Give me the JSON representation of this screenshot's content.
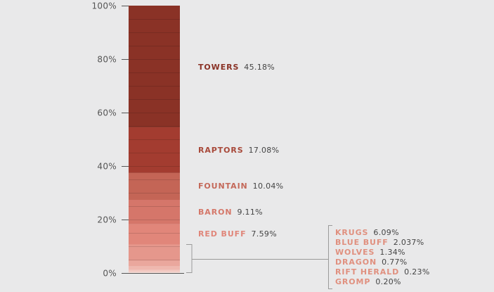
{
  "chart_data": {
    "type": "bar",
    "subtype": "stacked-100-percent",
    "title": "",
    "xlabel": "",
    "ylabel": "",
    "ylim": [
      0,
      100
    ],
    "y_ticks": [
      {
        "value": 0,
        "label": "0%"
      },
      {
        "value": 20,
        "label": "20%"
      },
      {
        "value": 40,
        "label": "40%"
      },
      {
        "value": 60,
        "label": "60%"
      },
      {
        "value": 80,
        "label": "80%"
      },
      {
        "value": 100,
        "label": "100%"
      }
    ],
    "grid": true,
    "series": [
      {
        "name": "TOWERS",
        "value": 45.18,
        "value_label": "45.18%",
        "color": "#8a3226",
        "label_color": "#8a3226"
      },
      {
        "name": "RAPTORS",
        "value": 17.08,
        "value_label": "17.08%",
        "color": "#a33c30",
        "label_color": "#a8493a"
      },
      {
        "name": "FOUNTAIN",
        "value": 10.04,
        "value_label": "10.04%",
        "color": "#c46556",
        "label_color": "#c4695a"
      },
      {
        "name": "BARON",
        "value": 9.11,
        "value_label": "9.11%",
        "color": "#d5766a",
        "label_color": "#d5786a"
      },
      {
        "name": "RED BUFF",
        "value": 7.59,
        "value_label": "7.59%",
        "color": "#e1867a",
        "label_color": "#e0867a"
      },
      {
        "name": "KRUGS",
        "value": 6.09,
        "value_label": "6.09%",
        "color": "#e5978c",
        "label_color": "#e0907f"
      },
      {
        "name": "BLUE BUFF",
        "value": 2.037,
        "value_label": "2.037%",
        "color": "#eaa79d",
        "label_color": "#e0907f"
      },
      {
        "name": "WOLVES",
        "value": 1.34,
        "value_label": "1.34%",
        "color": "#efb8af",
        "label_color": "#e0907f"
      },
      {
        "name": "DRAGON",
        "value": 0.77,
        "value_label": "0.77%",
        "color": "#f3c8c1",
        "label_color": "#e0907f"
      },
      {
        "name": "RIFT HERALD",
        "value": 0.23,
        "value_label": "0.23%",
        "color": "#f6d5cf",
        "label_color": "#e0907f"
      },
      {
        "name": "GROMP",
        "value": 0.2,
        "value_label": "0.20%",
        "color": "#f8dfda",
        "label_color": "#e0907f"
      }
    ],
    "grouped_small_segments": [
      "KRUGS",
      "BLUE BUFF",
      "WOLVES",
      "DRAGON",
      "RIFT HERALD",
      "GROMP"
    ]
  }
}
